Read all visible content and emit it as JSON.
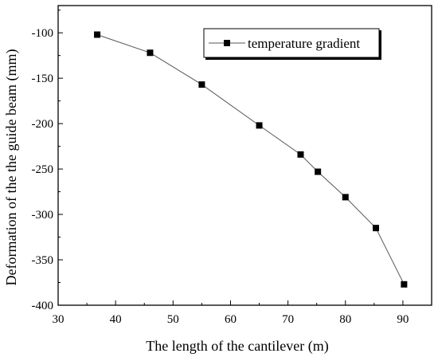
{
  "chart_data": {
    "type": "line",
    "xlabel": "The length of the cantilever (m)",
    "ylabel": "Deformation of the the guide beam (mm)",
    "xlim": [
      30,
      95
    ],
    "ylim": [
      -400,
      -70
    ],
    "xticks": [
      30,
      40,
      50,
      60,
      70,
      80,
      90
    ],
    "yticks": [
      -100,
      -150,
      -200,
      -250,
      -300,
      -350,
      -400
    ],
    "grid": false,
    "legend_position": "top-right",
    "series": [
      {
        "name": "temperature gradient",
        "marker": "square",
        "color": "#000000",
        "x": [
          36.8,
          46,
          55,
          65,
          72.2,
          75.2,
          80,
          85.3,
          90.2
        ],
        "y": [
          -102,
          -122,
          -157,
          -202,
          -234,
          -253,
          -281,
          -315,
          -377
        ]
      }
    ]
  }
}
